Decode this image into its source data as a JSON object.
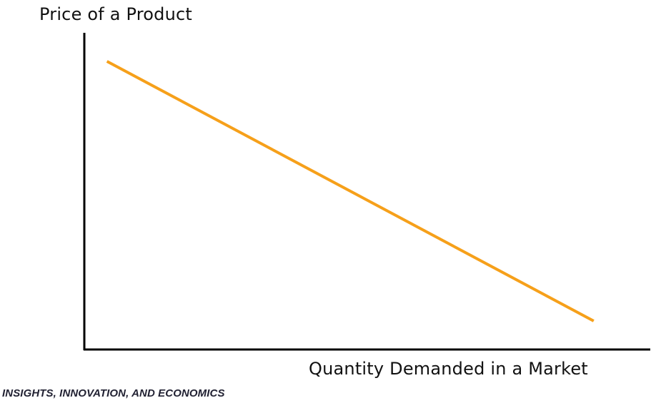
{
  "chart_data": {
    "type": "line",
    "title": "",
    "xlabel": "Quantity Demanded in a Market",
    "ylabel": "Price of a Product",
    "x": [
      0.04,
      0.9
    ],
    "series": [
      {
        "values": [
          0.91,
          0.09
        ]
      }
    ],
    "xlim": [
      0,
      1
    ],
    "ylim": [
      0,
      1
    ],
    "grid": false,
    "ticks": false,
    "line_color": "#F6A01A",
    "axis_color": "#000000"
  },
  "footer": {
    "text": "INSIGHTS, INNOVATION, AND ECONOMICS"
  }
}
